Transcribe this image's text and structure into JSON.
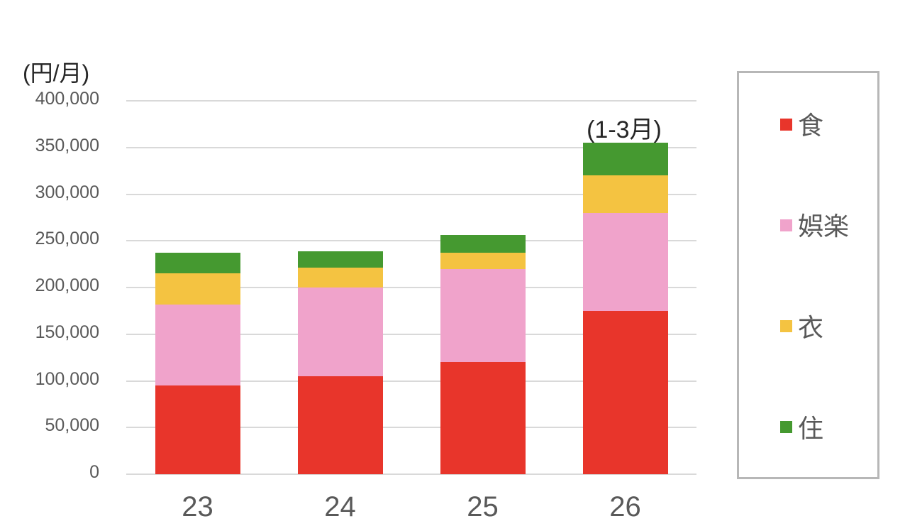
{
  "chart_data": {
    "type": "bar",
    "stacked": true,
    "title": "",
    "ylabel": "(円/月)",
    "xlabel": "",
    "categories": [
      "23",
      "24",
      "25",
      "26"
    ],
    "series": [
      {
        "name": "食",
        "color": "#e8352b",
        "values": [
          95000,
          105000,
          120000,
          175000
        ]
      },
      {
        "name": "娯楽",
        "color": "#f0a3cb",
        "values": [
          87000,
          95000,
          100000,
          105000
        ]
      },
      {
        "name": "衣",
        "color": "#f4c341",
        "values": [
          33000,
          21000,
          17000,
          40000
        ]
      },
      {
        "name": "住",
        "color": "#459930",
        "values": [
          22000,
          18000,
          19000,
          35000
        ]
      }
    ],
    "totals": [
      237000,
      239000,
      256000,
      355000
    ],
    "annotation": {
      "text": "(1-3月)",
      "category": "26"
    },
    "y_axis": {
      "min": 0,
      "max": 400000,
      "step": 50000,
      "tick_labels": [
        "400,000",
        "350,000",
        "300,000",
        "250,000",
        "200,000",
        "150,000",
        "100,000",
        "50,000",
        "0"
      ]
    },
    "legend": {
      "position": "right",
      "items": [
        "食",
        "娯楽",
        "衣",
        "住"
      ]
    },
    "grid": true,
    "colors": {
      "gridline": "#d9d9d9",
      "axis_text": "#595959",
      "title_text": "#262626",
      "legend_border": "#b7b7b7",
      "background": "#ffffff"
    }
  }
}
